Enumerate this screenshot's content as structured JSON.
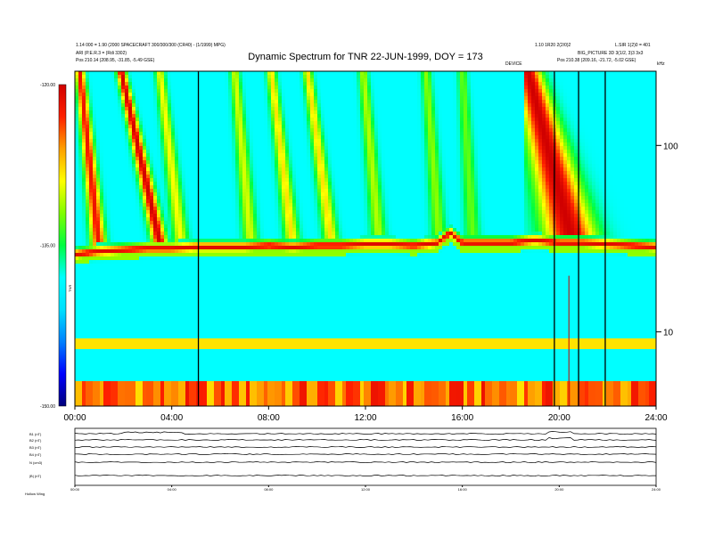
{
  "header": {
    "title": "Dynamic Spectrum for TNR 22-JUN-1999, DOY = 173",
    "left_line1": "1.14 000 = 1.90 (2000 SPACECRAFT 300/300/300 (CR40) -  (1/1999) MPG)",
    "left_line2": "ARI (P.E.R.3 = (Rdi 3302)",
    "left_line3": "Pos    210.14 (208.95, -31.85, -5.49 GSE)",
    "right_line1": "1.10 1R20 2(2/0)2",
    "right_line2": "L.SIR 1(2)0 = 401",
    "right_line3": "BIG_PICTURE 3D 3(1/2, 3)3 3x3",
    "right_line4": "Pos    210.38 (209.16, -21.72, -5.02 GSE)",
    "marker_label": "DEVICE",
    "units_label": "kHz"
  },
  "chart_data": {
    "type": "heatmap",
    "title": "Dynamic Spectrum for TNR 22-JUN-1999, DOY = 173",
    "xlabel": "",
    "ylabel": "",
    "x_ticks": [
      "00:00",
      "04:00",
      "08:00",
      "12:00",
      "16:00",
      "20:00",
      "24:00"
    ],
    "x_range_hours": [
      0,
      24
    ],
    "y_scale": "log",
    "y_range_khz": [
      4,
      250
    ],
    "y_ticks": [
      "100",
      "10"
    ],
    "colorbar": {
      "label": "TNR",
      "ticks": [
        "-120.00",
        "-135.00",
        "-150.00"
      ],
      "range_db": [
        -150,
        -120
      ],
      "colors": [
        "#00007a",
        "#0000ff",
        "#0080ff",
        "#00e0ff",
        "#00ffff",
        "#00ff40",
        "#80ff00",
        "#ffff00",
        "#ffa000",
        "#ff2000",
        "#d00000"
      ]
    },
    "vertical_markers_hours": [
      5.1,
      19.8,
      20.8,
      21.9
    ],
    "thin_markers_hours": [
      20.4
    ],
    "plasma_line_khz": [
      [
        0,
        26
      ],
      [
        1,
        27
      ],
      [
        2,
        27.5
      ],
      [
        3,
        28
      ],
      [
        4,
        28
      ],
      [
        5,
        28.5
      ],
      [
        6,
        28.5
      ],
      [
        7,
        28.5
      ],
      [
        8,
        29
      ],
      [
        9,
        28.5
      ],
      [
        10,
        29
      ],
      [
        11,
        29
      ],
      [
        12,
        29.5
      ],
      [
        13,
        29.5
      ],
      [
        14,
        29
      ],
      [
        15,
        30
      ],
      [
        15.5,
        34
      ],
      [
        16,
        30
      ],
      [
        17,
        30
      ],
      [
        18,
        30
      ],
      [
        19,
        31
      ],
      [
        20,
        30
      ],
      [
        21,
        30
      ],
      [
        22,
        29.5
      ],
      [
        23,
        29
      ],
      [
        24,
        28.5
      ]
    ]
  },
  "bottom_panel": {
    "labels": [
      "B1 (nT)",
      "B2 (nT)",
      "B3 (nT)",
      "B4 (nT)",
      "N (cm3)",
      "|B| (nT)"
    ],
    "x_ticks": [
      "00:00",
      "04:00",
      "08:00",
      "12:00",
      "16:00",
      "20:00",
      "24:00"
    ],
    "footer": "Hollow Wing"
  }
}
